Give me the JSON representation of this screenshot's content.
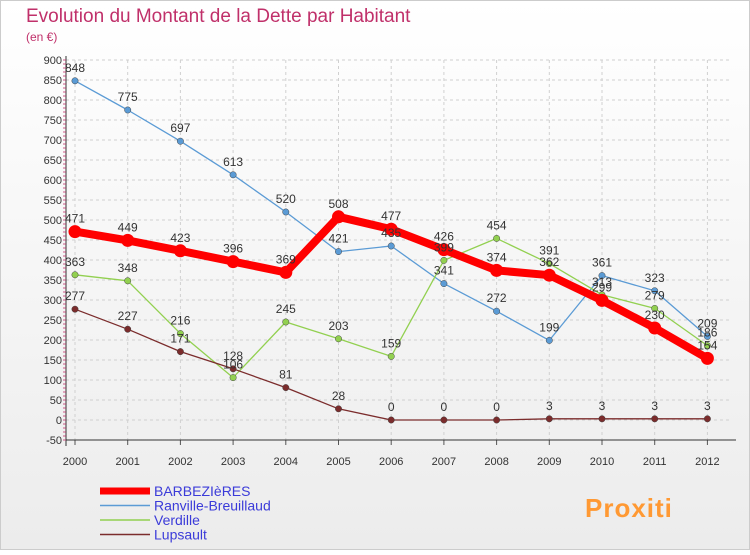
{
  "chart_data": {
    "type": "line",
    "title": "Evolution du Montant de la Dette par Habitant",
    "subtitle": "(en €)",
    "x": [
      "2000",
      "2001",
      "2002",
      "2003",
      "2004",
      "2005",
      "2006",
      "2007",
      "2008",
      "2009",
      "2010",
      "2011",
      "2012"
    ],
    "ylim": [
      -50,
      900
    ],
    "yticks": [
      -50,
      0,
      50,
      100,
      150,
      200,
      250,
      300,
      350,
      400,
      450,
      500,
      550,
      600,
      650,
      700,
      750,
      800,
      850,
      900
    ],
    "grid": true,
    "series": [
      {
        "name": "BARBEZIèRES",
        "color": "#ff0000",
        "values": [
          471,
          449,
          423,
          396,
          369,
          508,
          477,
          426,
          374,
          362,
          299,
          230,
          154
        ]
      },
      {
        "name": "Ranville-Breuillaud",
        "color": "#5b9bd5",
        "values": [
          848,
          775,
          697,
          613,
          520,
          421,
          435,
          341,
          272,
          199,
          361,
          323,
          209
        ]
      },
      {
        "name": "Verdille",
        "color": "#92d050",
        "values": [
          363,
          348,
          216,
          106,
          245,
          203,
          159,
          399,
          454,
          391,
          313,
          279,
          186
        ]
      },
      {
        "name": "Lupsault",
        "color": "#7b2c2c",
        "values": [
          277,
          227,
          171,
          128,
          81,
          28,
          0,
          0,
          0,
          3,
          3,
          3,
          3
        ]
      }
    ],
    "data_labels": {
      "BARBEZIèRES": [
        "471",
        "449",
        "423",
        "396",
        "369",
        "508",
        "477",
        "426",
        "374",
        "362",
        "299",
        "230",
        "154"
      ],
      "Ranville-Breuillaud": [
        "848",
        "775",
        "697",
        "613",
        "520",
        "421",
        "435",
        "341",
        "272",
        "199",
        "361",
        "323",
        "209"
      ],
      "Verdille": [
        "363",
        "348",
        "216",
        "106",
        "245",
        "203",
        "159",
        "399",
        "454",
        "391",
        "313",
        "279",
        "186"
      ],
      "Lupsault": [
        "277",
        "227",
        "171",
        "128",
        "81",
        "28",
        "0",
        "0",
        "0",
        "3",
        "3",
        "3",
        "3"
      ]
    },
    "legend_position": "bottom-left"
  },
  "logo_text": "Proxiti"
}
